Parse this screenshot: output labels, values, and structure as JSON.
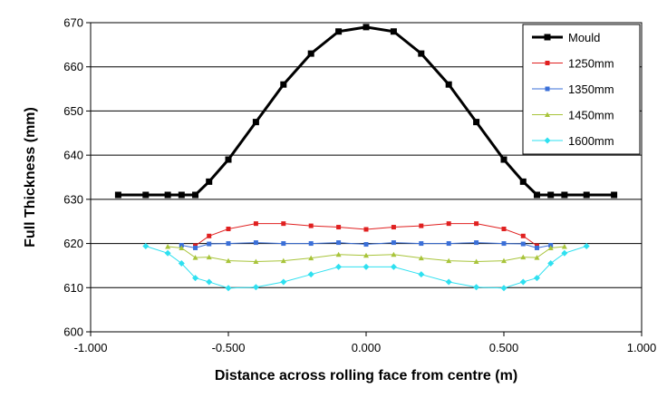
{
  "chart_data": {
    "type": "line",
    "title": "",
    "xlabel": "Distance across rolling face from centre (m)",
    "ylabel": "Full Thickness (mm)",
    "xlim": [
      -1.0,
      1.0
    ],
    "ylim": [
      600,
      670
    ],
    "xticks": [
      -1.0,
      -0.5,
      0.0,
      0.5,
      1.0
    ],
    "xtick_labels": [
      "-1.000",
      "-0.500",
      "0.000",
      "0.500",
      "1.000"
    ],
    "yticks": [
      600,
      610,
      620,
      630,
      640,
      650,
      660,
      670
    ],
    "ytick_labels": [
      "600",
      "610",
      "620",
      "630",
      "640",
      "650",
      "660",
      "670"
    ],
    "grid": "horizontal",
    "legend_position": "top-right",
    "series": [
      {
        "name": "Mould",
        "color": "#000000",
        "marker": "square",
        "points": [
          [
            -0.9,
            631
          ],
          [
            -0.8,
            631
          ],
          [
            -0.72,
            631
          ],
          [
            -0.67,
            631
          ],
          [
            -0.62,
            631
          ],
          [
            -0.57,
            634
          ],
          [
            -0.5,
            639
          ],
          [
            -0.4,
            647.5
          ],
          [
            -0.3,
            656
          ],
          [
            -0.2,
            663
          ],
          [
            -0.1,
            668
          ],
          [
            0.0,
            669
          ],
          [
            0.1,
            668
          ],
          [
            0.2,
            663
          ],
          [
            0.3,
            656
          ],
          [
            0.4,
            647.5
          ],
          [
            0.5,
            639
          ],
          [
            0.57,
            634
          ],
          [
            0.62,
            631
          ],
          [
            0.67,
            631
          ],
          [
            0.72,
            631
          ],
          [
            0.8,
            631
          ],
          [
            0.9,
            631
          ]
        ]
      },
      {
        "name": "1250mm",
        "color": "#e02020",
        "marker": "square",
        "points": [
          [
            -0.62,
            619.5
          ],
          [
            -0.57,
            621.7
          ],
          [
            -0.5,
            623.3
          ],
          [
            -0.4,
            624.5
          ],
          [
            -0.3,
            624.5
          ],
          [
            -0.2,
            624
          ],
          [
            -0.1,
            623.7
          ],
          [
            0.0,
            623.2
          ],
          [
            0.1,
            623.7
          ],
          [
            0.2,
            624
          ],
          [
            0.3,
            624.5
          ],
          [
            0.4,
            624.5
          ],
          [
            0.5,
            623.3
          ],
          [
            0.57,
            621.7
          ],
          [
            0.62,
            619.5
          ]
        ]
      },
      {
        "name": "1350mm",
        "color": "#3a6fd8",
        "marker": "square",
        "points": [
          [
            -0.67,
            619.6
          ],
          [
            -0.62,
            619
          ],
          [
            -0.57,
            619.9
          ],
          [
            -0.5,
            620
          ],
          [
            -0.4,
            620.2
          ],
          [
            -0.3,
            620
          ],
          [
            -0.2,
            620
          ],
          [
            -0.1,
            620.2
          ],
          [
            0.0,
            619.8
          ],
          [
            0.1,
            620.2
          ],
          [
            0.2,
            620
          ],
          [
            0.3,
            620
          ],
          [
            0.4,
            620.2
          ],
          [
            0.5,
            620
          ],
          [
            0.57,
            619.9
          ],
          [
            0.62,
            619
          ],
          [
            0.67,
            619.6
          ]
        ]
      },
      {
        "name": "1450mm",
        "color": "#a8c43a",
        "marker": "triangle",
        "points": [
          [
            -0.72,
            619.3
          ],
          [
            -0.67,
            619
          ],
          [
            -0.62,
            616.8
          ],
          [
            -0.57,
            616.9
          ],
          [
            -0.5,
            616.1
          ],
          [
            -0.4,
            615.9
          ],
          [
            -0.3,
            616.1
          ],
          [
            -0.2,
            616.7
          ],
          [
            -0.1,
            617.5
          ],
          [
            0.0,
            617.3
          ],
          [
            0.1,
            617.5
          ],
          [
            0.2,
            616.7
          ],
          [
            0.3,
            616.1
          ],
          [
            0.4,
            615.9
          ],
          [
            0.5,
            616.1
          ],
          [
            0.57,
            616.9
          ],
          [
            0.62,
            616.8
          ],
          [
            0.67,
            619
          ],
          [
            0.72,
            619.3
          ]
        ]
      },
      {
        "name": "1600mm",
        "color": "#2ee0f0",
        "marker": "diamond",
        "points": [
          [
            -0.8,
            619.4
          ],
          [
            -0.72,
            617.8
          ],
          [
            -0.67,
            615.5
          ],
          [
            -0.62,
            612.2
          ],
          [
            -0.57,
            611.3
          ],
          [
            -0.5,
            609.9
          ],
          [
            -0.4,
            610.1
          ],
          [
            -0.3,
            611.3
          ],
          [
            -0.2,
            613
          ],
          [
            -0.1,
            614.7
          ],
          [
            0.0,
            614.7
          ],
          [
            0.1,
            614.7
          ],
          [
            0.2,
            613
          ],
          [
            0.3,
            611.3
          ],
          [
            0.4,
            610.1
          ],
          [
            0.5,
            609.9
          ],
          [
            0.57,
            611.3
          ],
          [
            0.62,
            612.2
          ],
          [
            0.67,
            615.5
          ],
          [
            0.72,
            617.8
          ],
          [
            0.8,
            619.4
          ]
        ]
      }
    ]
  }
}
